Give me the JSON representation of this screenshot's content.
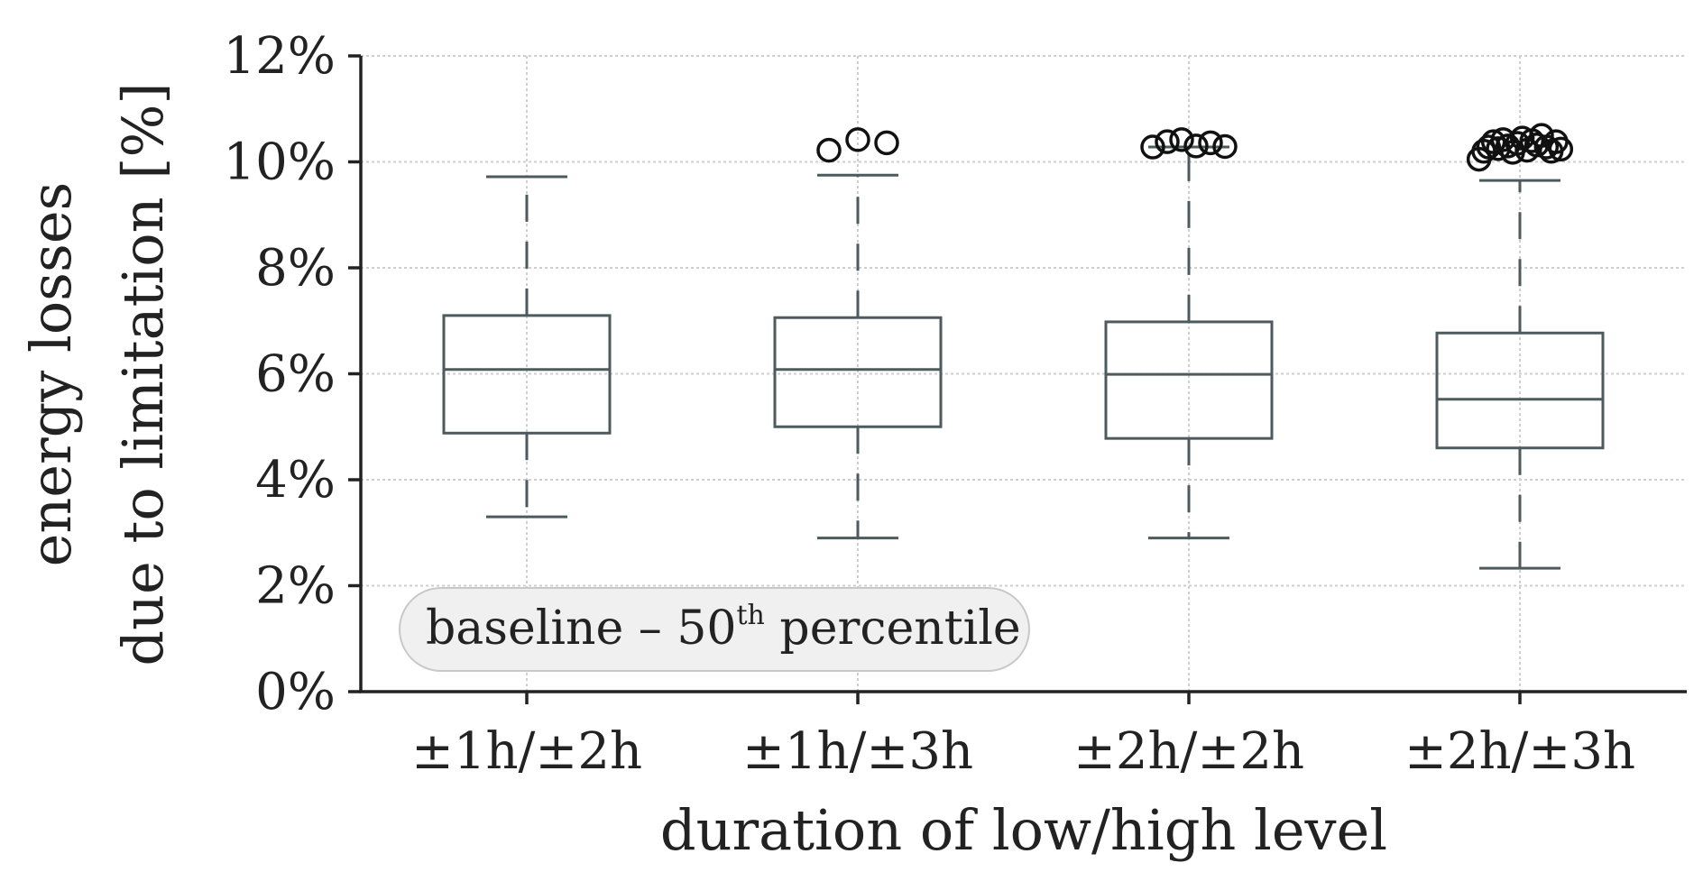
{
  "chart_data": {
    "type": "boxplot",
    "title": "",
    "xlabel": "duration of low/high level",
    "ylabel_line1": "energy losses",
    "ylabel_line2": "due to limitation [%]",
    "ylim": [
      0,
      12
    ],
    "yticks": [
      0,
      2,
      4,
      6,
      8,
      10,
      12
    ],
    "ytick_labels": [
      "0%",
      "2%",
      "4%",
      "6%",
      "8%",
      "10%",
      "12%"
    ],
    "categories": [
      "±1h/±2h",
      "±1h/±3h",
      "±2h/±2h",
      "±2h/±3h"
    ],
    "grid": true,
    "legend": {
      "placement": "bottom-left",
      "text_main": "baseline – 50",
      "text_sup": "th",
      "text_end": " percentile"
    },
    "boxes": [
      {
        "category": "±1h/±2h",
        "whisker_low": 3.3,
        "q1": 4.88,
        "median": 6.08,
        "q3": 7.1,
        "whisker_high": 9.72,
        "outliers": []
      },
      {
        "category": "±1h/±3h",
        "whisker_low": 2.9,
        "q1": 5.0,
        "median": 6.08,
        "q3": 7.06,
        "whisker_high": 9.75,
        "outliers": [
          10.22,
          10.42,
          10.36
        ]
      },
      {
        "category": "±2h/±2h",
        "whisker_low": 2.9,
        "q1": 4.78,
        "median": 5.99,
        "q3": 6.98,
        "whisker_high": 10.28,
        "outliers": [
          10.28,
          10.38,
          10.42,
          10.3,
          10.36,
          10.29
        ]
      },
      {
        "category": "±2h/±3h",
        "whisker_low": 2.33,
        "q1": 4.6,
        "median": 5.52,
        "q3": 6.77,
        "whisker_high": 9.65,
        "outliers": [
          10.05,
          10.2,
          10.28,
          10.38,
          10.25,
          10.42,
          10.3,
          10.18,
          10.35,
          10.45,
          10.22,
          10.4,
          10.32,
          10.5,
          10.28,
          10.2,
          10.38,
          10.24
        ]
      }
    ],
    "colors": {
      "box": "#4d5a5e",
      "outlier": "#111111",
      "grid": "#cfcfcf",
      "legend_bg": "#f0f0f0"
    }
  }
}
